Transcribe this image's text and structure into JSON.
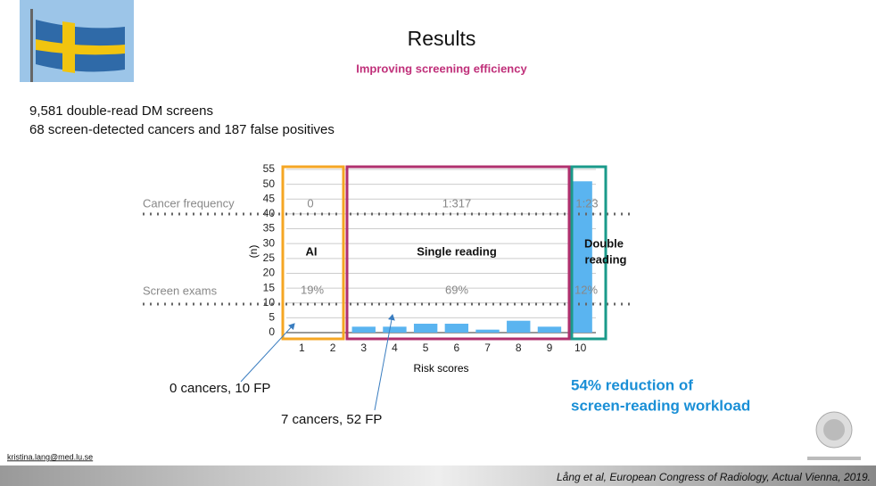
{
  "header": {
    "title": "Results",
    "subtitle": "Improving screening efficiency"
  },
  "intro": [
    "9,581 double-read DM screens",
    "68 screen-detected cancers and 187 false positives"
  ],
  "chart_data": {
    "type": "bar",
    "x_label": "Risk scores",
    "y_label": "(n)",
    "categories": [
      "1",
      "2",
      "3",
      "4",
      "5",
      "6",
      "7",
      "8",
      "9",
      "10"
    ],
    "values": [
      0,
      0,
      2,
      2,
      3,
      3,
      1,
      4,
      2,
      51
    ],
    "color": "#5ab4f0",
    "ylim": [
      0,
      55
    ],
    "yticks": [
      0,
      5,
      10,
      15,
      20,
      25,
      30,
      35,
      40,
      45,
      50,
      55
    ],
    "grid": true
  },
  "row_labels": {
    "cancer_frequency": "Cancer frequency",
    "screen_exams": "Screen exams"
  },
  "groups": [
    {
      "label": [
        "AI"
      ],
      "cancer_frequency": "0",
      "screen_exams": "19%"
    },
    {
      "label": [
        "Single reading"
      ],
      "cancer_frequency": "1:317",
      "screen_exams": "69%"
    },
    {
      "label": [
        "Double",
        "reading"
      ],
      "cancer_frequency": "1:23",
      "screen_exams": "12%"
    }
  ],
  "callouts": [
    "0 cancers, 10 FP",
    "7 cancers, 52 FP"
  ],
  "highlight": [
    "54% reduction of",
    "screen-reading workload"
  ],
  "footer": {
    "email": "kristina.lang@med.lu.se",
    "citation": "Lång et al, European Congress of Radiology, Actual Vienna, 2019."
  }
}
